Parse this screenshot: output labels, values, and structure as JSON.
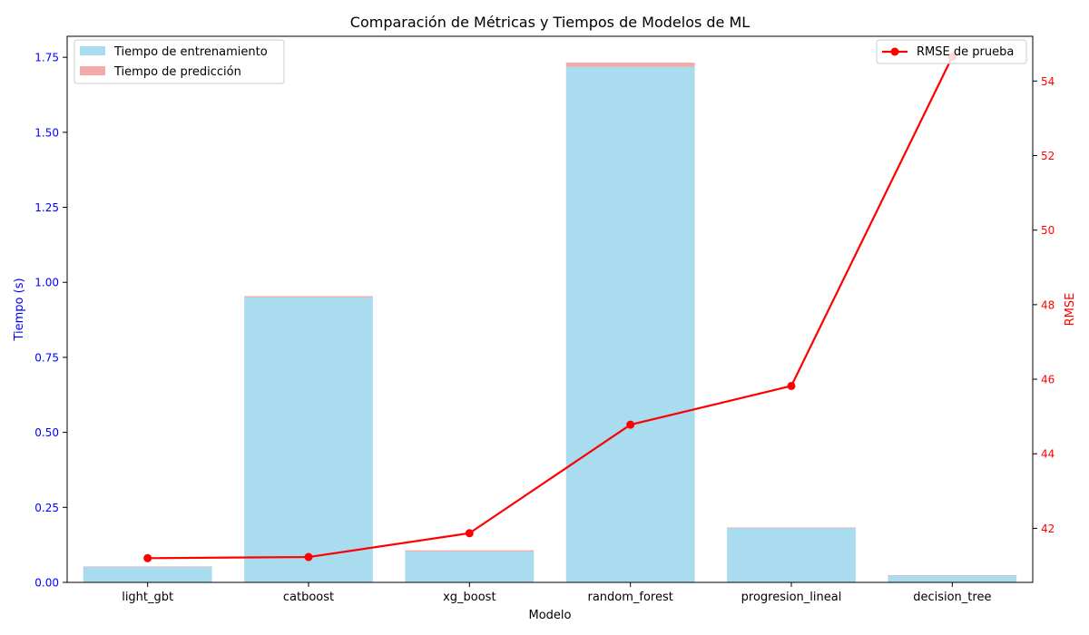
{
  "chart_data": {
    "type": "bar",
    "title": "Comparación de Métricas y Tiempos de Modelos de ML",
    "xlabel": "Modelo",
    "ylabel": "Tiempo (s)",
    "ylabel_right": "RMSE",
    "categories": [
      "light_gbt",
      "catboost",
      "xg_boost",
      "random_forest",
      "progresion_lineal",
      "decision_tree"
    ],
    "series": [
      {
        "name": "Tiempo de entrenamiento",
        "type": "bar",
        "axis": "left",
        "color": "#a8dcee",
        "values": [
          0.052,
          0.95,
          0.103,
          1.718,
          0.182,
          0.023
        ]
      },
      {
        "name": "Tiempo de predicción",
        "type": "bar-stacked",
        "axis": "left",
        "color": "#f4a8a8",
        "values": [
          0.001,
          0.004,
          0.004,
          0.014,
          0.001,
          0.001
        ]
      },
      {
        "name": "RMSE de prueba",
        "type": "line",
        "axis": "right",
        "color": "#ff0000",
        "values": [
          41.2,
          41.23,
          41.87,
          44.78,
          45.82,
          54.65
        ]
      }
    ],
    "ylim": [
      0,
      1.82
    ],
    "ylim_right": [
      40.55,
      55.2
    ],
    "yticks": [
      "0.00",
      "0.25",
      "0.50",
      "0.75",
      "1.00",
      "1.25",
      "1.50",
      "1.75"
    ],
    "yticks_right": [
      "42",
      "44",
      "46",
      "48",
      "50",
      "52",
      "54"
    ],
    "left_axis_color": "#0000ff",
    "right_axis_color": "#ff0000",
    "legend_left_placement": "upper-left",
    "legend_right_placement": "upper-right",
    "grid": false
  }
}
